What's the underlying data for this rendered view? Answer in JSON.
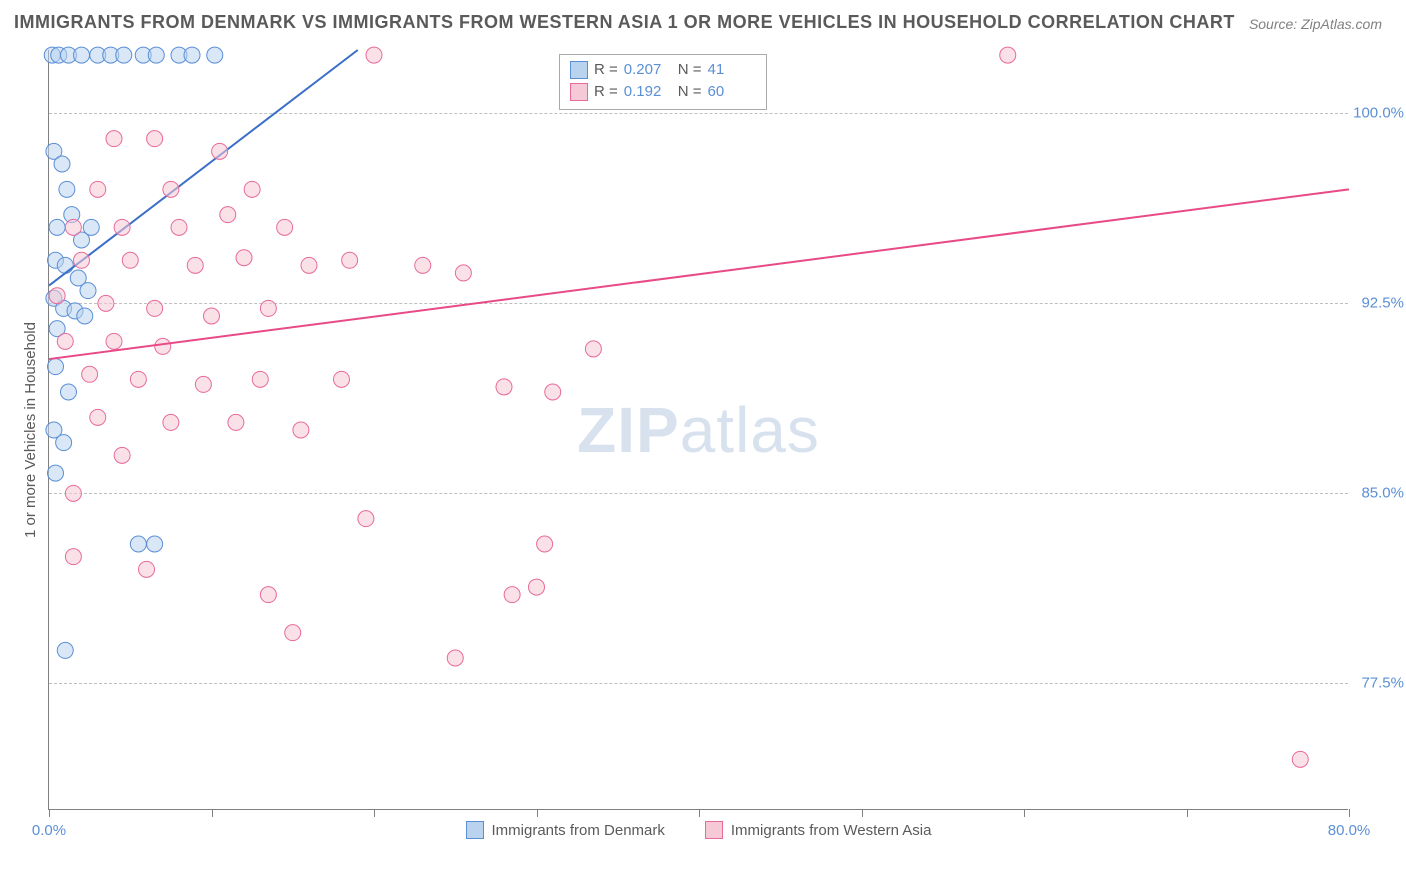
{
  "title": "IMMIGRANTS FROM DENMARK VS IMMIGRANTS FROM WESTERN ASIA 1 OR MORE VEHICLES IN HOUSEHOLD CORRELATION CHART",
  "source": "Source: ZipAtlas.com",
  "ylabel": "1 or more Vehicles in Household",
  "watermark_bold": "ZIP",
  "watermark_rest": "atlas",
  "chart": {
    "type": "scatter",
    "xlim": [
      0,
      80
    ],
    "ylim": [
      72.5,
      102.5
    ],
    "x_ticks": [
      0,
      10,
      20,
      30,
      40,
      50,
      60,
      70,
      80
    ],
    "x_tick_labels": {
      "0": "0.0%",
      "80": "80.0%"
    },
    "y_ticks": [
      77.5,
      85.0,
      92.5,
      100.0
    ],
    "y_tick_labels": [
      "77.5%",
      "85.0%",
      "92.5%",
      "100.0%"
    ],
    "background_color": "#ffffff",
    "grid_color": "#bfbfbf",
    "axis_color": "#808080",
    "marker_radius": 8,
    "marker_opacity": 0.55,
    "series": [
      {
        "name": "Immigrants from Denmark",
        "color_fill": "#b9d3ef",
        "color_stroke": "#5b8fd6",
        "R": "0.207",
        "N": "41",
        "trend": {
          "x1": 0,
          "y1": 93.2,
          "x2": 19,
          "y2": 102.5,
          "color": "#3a6fc9",
          "width": 2
        },
        "points": [
          [
            0.2,
            102.3
          ],
          [
            0.6,
            102.3
          ],
          [
            1.2,
            102.3
          ],
          [
            2.0,
            102.3
          ],
          [
            3.0,
            102.3
          ],
          [
            3.8,
            102.3
          ],
          [
            4.6,
            102.3
          ],
          [
            5.8,
            102.3
          ],
          [
            6.6,
            102.3
          ],
          [
            8.0,
            102.3
          ],
          [
            8.8,
            102.3
          ],
          [
            10.2,
            102.3
          ],
          [
            0.3,
            98.5
          ],
          [
            0.8,
            98.0
          ],
          [
            1.1,
            97.0
          ],
          [
            1.4,
            96.0
          ],
          [
            0.5,
            95.5
          ],
          [
            2.0,
            95.0
          ],
          [
            2.6,
            95.5
          ],
          [
            0.4,
            94.2
          ],
          [
            1.0,
            94.0
          ],
          [
            1.8,
            93.5
          ],
          [
            2.4,
            93.0
          ],
          [
            0.3,
            92.7
          ],
          [
            0.9,
            92.3
          ],
          [
            1.6,
            92.2
          ],
          [
            2.2,
            92.0
          ],
          [
            0.5,
            91.5
          ],
          [
            0.4,
            90.0
          ],
          [
            1.2,
            89.0
          ],
          [
            0.3,
            87.5
          ],
          [
            0.9,
            87.0
          ],
          [
            0.4,
            85.8
          ],
          [
            5.5,
            83.0
          ],
          [
            6.5,
            83.0
          ],
          [
            1.0,
            78.8
          ]
        ]
      },
      {
        "name": "Immigrants from Western Asia",
        "color_fill": "#f6c9d6",
        "color_stroke": "#e86a9a",
        "R": "0.192",
        "N": "60",
        "trend": {
          "x1": 0,
          "y1": 90.3,
          "x2": 80,
          "y2": 97.0,
          "color": "#e84a87",
          "width": 2
        },
        "points": [
          [
            20.0,
            102.3
          ],
          [
            59.0,
            102.3
          ],
          [
            4.0,
            99.0
          ],
          [
            6.5,
            99.0
          ],
          [
            10.5,
            98.5
          ],
          [
            3.0,
            97.0
          ],
          [
            7.5,
            97.0
          ],
          [
            12.5,
            97.0
          ],
          [
            1.5,
            95.5
          ],
          [
            4.5,
            95.5
          ],
          [
            8.0,
            95.5
          ],
          [
            11.0,
            96.0
          ],
          [
            14.5,
            95.5
          ],
          [
            2.0,
            94.2
          ],
          [
            5.0,
            94.2
          ],
          [
            9.0,
            94.0
          ],
          [
            12.0,
            94.3
          ],
          [
            16.0,
            94.0
          ],
          [
            18.5,
            94.2
          ],
          [
            23.0,
            94.0
          ],
          [
            25.5,
            93.7
          ],
          [
            0.5,
            92.8
          ],
          [
            3.5,
            92.5
          ],
          [
            6.5,
            92.3
          ],
          [
            10.0,
            92.0
          ],
          [
            13.5,
            92.3
          ],
          [
            1.0,
            91.0
          ],
          [
            4.0,
            91.0
          ],
          [
            7.0,
            90.8
          ],
          [
            33.5,
            90.7
          ],
          [
            2.5,
            89.7
          ],
          [
            5.5,
            89.5
          ],
          [
            9.5,
            89.3
          ],
          [
            13.0,
            89.5
          ],
          [
            18.0,
            89.5
          ],
          [
            28.0,
            89.2
          ],
          [
            31.0,
            89.0
          ],
          [
            3.0,
            88.0
          ],
          [
            7.5,
            87.8
          ],
          [
            11.5,
            87.8
          ],
          [
            15.5,
            87.5
          ],
          [
            4.5,
            86.5
          ],
          [
            1.5,
            85.0
          ],
          [
            19.5,
            84.0
          ],
          [
            30.5,
            83.0
          ],
          [
            1.5,
            82.5
          ],
          [
            6.0,
            82.0
          ],
          [
            13.5,
            81.0
          ],
          [
            28.5,
            81.0
          ],
          [
            30.0,
            81.3
          ],
          [
            15.0,
            79.5
          ],
          [
            25.0,
            78.5
          ],
          [
            77.0,
            74.5
          ]
        ]
      }
    ]
  }
}
